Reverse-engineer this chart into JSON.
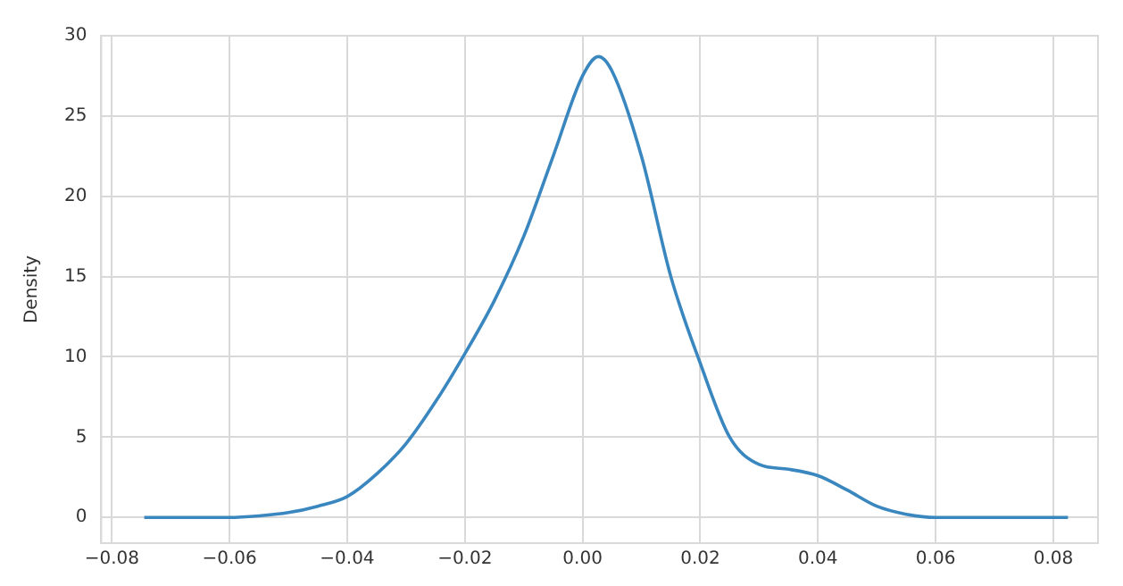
{
  "chart_data": {
    "type": "line",
    "ylabel": "Density",
    "x": [
      -0.0745,
      -0.065,
      -0.06,
      -0.055,
      -0.05,
      -0.045,
      -0.04,
      -0.035,
      -0.03,
      -0.025,
      -0.02,
      -0.015,
      -0.01,
      -0.005,
      0,
      0.0027,
      0.005,
      0.01,
      0.015,
      0.02,
      0.025,
      0.03,
      0.035,
      0.04,
      0.045,
      0.05,
      0.055,
      0.06,
      0.065,
      0.07,
      0.0825
    ],
    "series": [
      {
        "color": "#3a87c0",
        "values": [
          0,
          0,
          0,
          0.1,
          0.3,
          0.7,
          1.3,
          2.7,
          4.6,
          7.2,
          10.2,
          13.5,
          17.5,
          22.5,
          27.5,
          28.7,
          27.8,
          22.5,
          15,
          9.6,
          5,
          3.3,
          3.0,
          2.6,
          1.7,
          0.7,
          0.2,
          0,
          0,
          0,
          0
        ]
      }
    ],
    "xlim": [
      -0.0818,
      0.0876
    ],
    "xticks": [
      {
        "value": -0.08,
        "label": "−0.08"
      },
      {
        "value": -0.06,
        "label": "−0.06"
      },
      {
        "value": -0.04,
        "label": "−0.04"
      },
      {
        "value": -0.02,
        "label": "−0.02"
      },
      {
        "value": 0,
        "label": "0.00"
      },
      {
        "value": 0.02,
        "label": "0.02"
      },
      {
        "value": 0.04,
        "label": "0.04"
      },
      {
        "value": 0.06,
        "label": "0.06"
      },
      {
        "value": 0.08,
        "label": "0.08"
      }
    ],
    "ylim": [
      -1.6,
      30
    ],
    "yticks": [
      0,
      5,
      10,
      15,
      20,
      25,
      30
    ],
    "grid": true,
    "marker": "none",
    "line_style": "solid"
  }
}
